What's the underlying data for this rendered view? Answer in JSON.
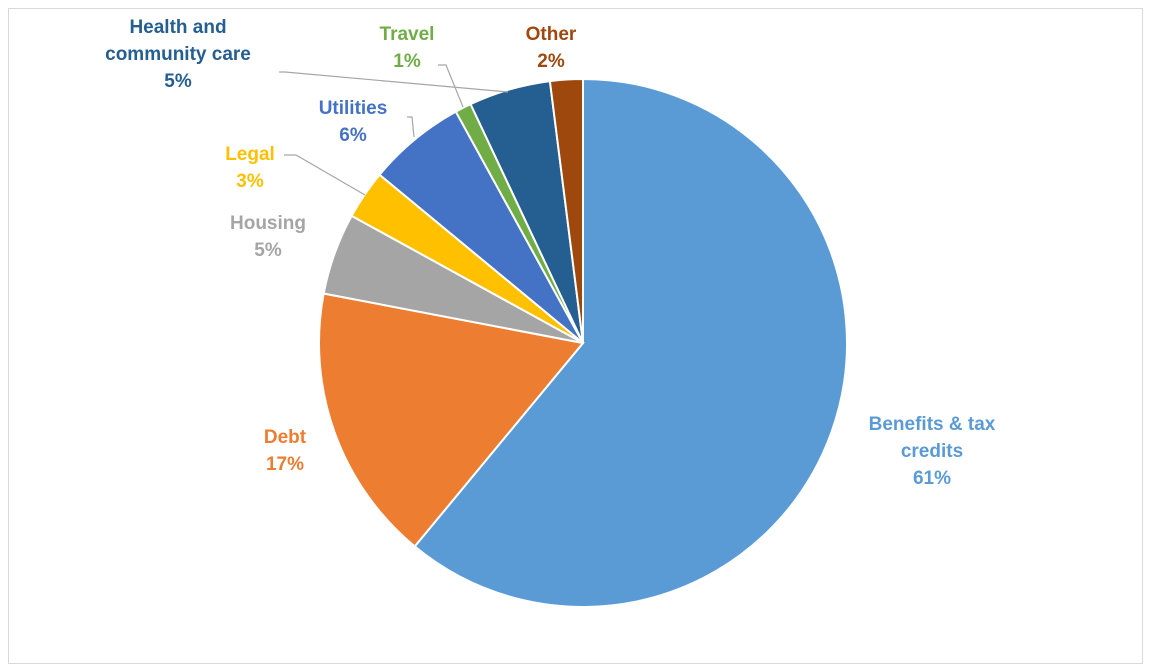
{
  "chart_data": {
    "type": "pie",
    "title": "",
    "start_angle_deg": 0,
    "direction": "clockwise",
    "slices": [
      {
        "label_lines": [
          "Benefits & tax",
          "credits"
        ],
        "value_label": "61%",
        "value": 61,
        "color": "#5B9BD5",
        "label_color": "#5B9BD5"
      },
      {
        "label_lines": [
          "Debt"
        ],
        "value_label": "17%",
        "value": 17,
        "color": "#ED7D31",
        "label_color": "#ED7D31"
      },
      {
        "label_lines": [
          "Housing"
        ],
        "value_label": "5%",
        "value": 5,
        "color": "#A5A5A5",
        "label_color": "#A5A5A5"
      },
      {
        "label_lines": [
          "Legal"
        ],
        "value_label": "3%",
        "value": 3,
        "color": "#FFC000",
        "label_color": "#FFC000"
      },
      {
        "label_lines": [
          "Utilities"
        ],
        "value_label": "6%",
        "value": 6,
        "color": "#4472C4",
        "label_color": "#4472C4"
      },
      {
        "label_lines": [
          "Travel"
        ],
        "value_label": "1%",
        "value": 1,
        "color": "#70AD47",
        "label_color": "#70AD47"
      },
      {
        "label_lines": [
          "Health and",
          "community care"
        ],
        "value_label": "5%",
        "value": 5,
        "color": "#255E91",
        "label_color": "#255E91"
      },
      {
        "label_lines": [
          "Other"
        ],
        "value_label": "2%",
        "value": 2,
        "color": "#9E480E",
        "label_color": "#9E480E"
      }
    ],
    "legend": "none",
    "data_labels": "category and percentage"
  }
}
